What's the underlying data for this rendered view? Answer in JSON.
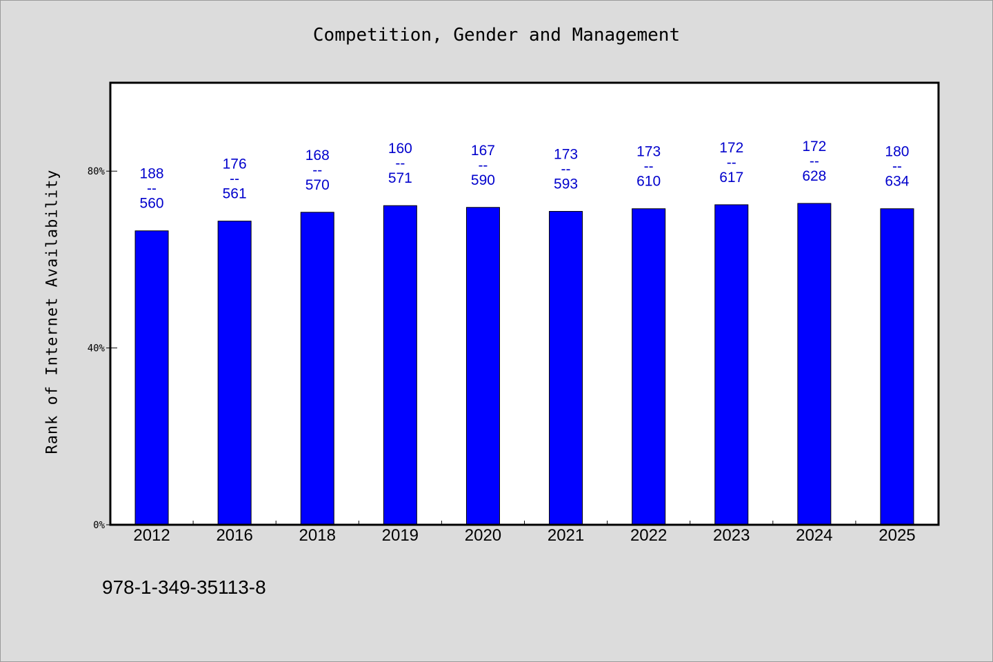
{
  "chart_data": {
    "type": "bar",
    "title": "Competition, Gender and Management",
    "xlabel": "",
    "ylabel": "Rank of Internet Availability",
    "categories": [
      "2012",
      "2016",
      "2018",
      "2019",
      "2020",
      "2021",
      "2022",
      "2023",
      "2024",
      "2025"
    ],
    "series": [
      {
        "values": [
          66.5,
          68.7,
          70.7,
          72.2,
          71.8,
          70.9,
          71.5,
          72.4,
          72.7,
          71.5
        ],
        "color": "#0000ff"
      }
    ],
    "data_labels": [
      [
        "188",
        "--",
        "560"
      ],
      [
        "176",
        "--",
        "561"
      ],
      [
        "168",
        "--",
        "570"
      ],
      [
        "160",
        "--",
        "571"
      ],
      [
        "167",
        "--",
        "590"
      ],
      [
        "173",
        "--",
        "593"
      ],
      [
        "173",
        "--",
        "610"
      ],
      [
        "172",
        "--",
        "617"
      ],
      [
        "172",
        "--",
        "628"
      ],
      [
        "180",
        "--",
        "634"
      ]
    ],
    "ylim": [
      0,
      100
    ],
    "yticks": [
      0,
      40,
      80
    ],
    "ytick_labels": [
      "0%",
      "40%",
      "80%"
    ],
    "grid": false,
    "legend": "none"
  },
  "footer_text": "978-1-349-35113-8",
  "colors": {
    "background": "#dcdcdc",
    "plot_background": "#ffffff",
    "bar": "#0000ff",
    "data_label": "#0000cc"
  }
}
